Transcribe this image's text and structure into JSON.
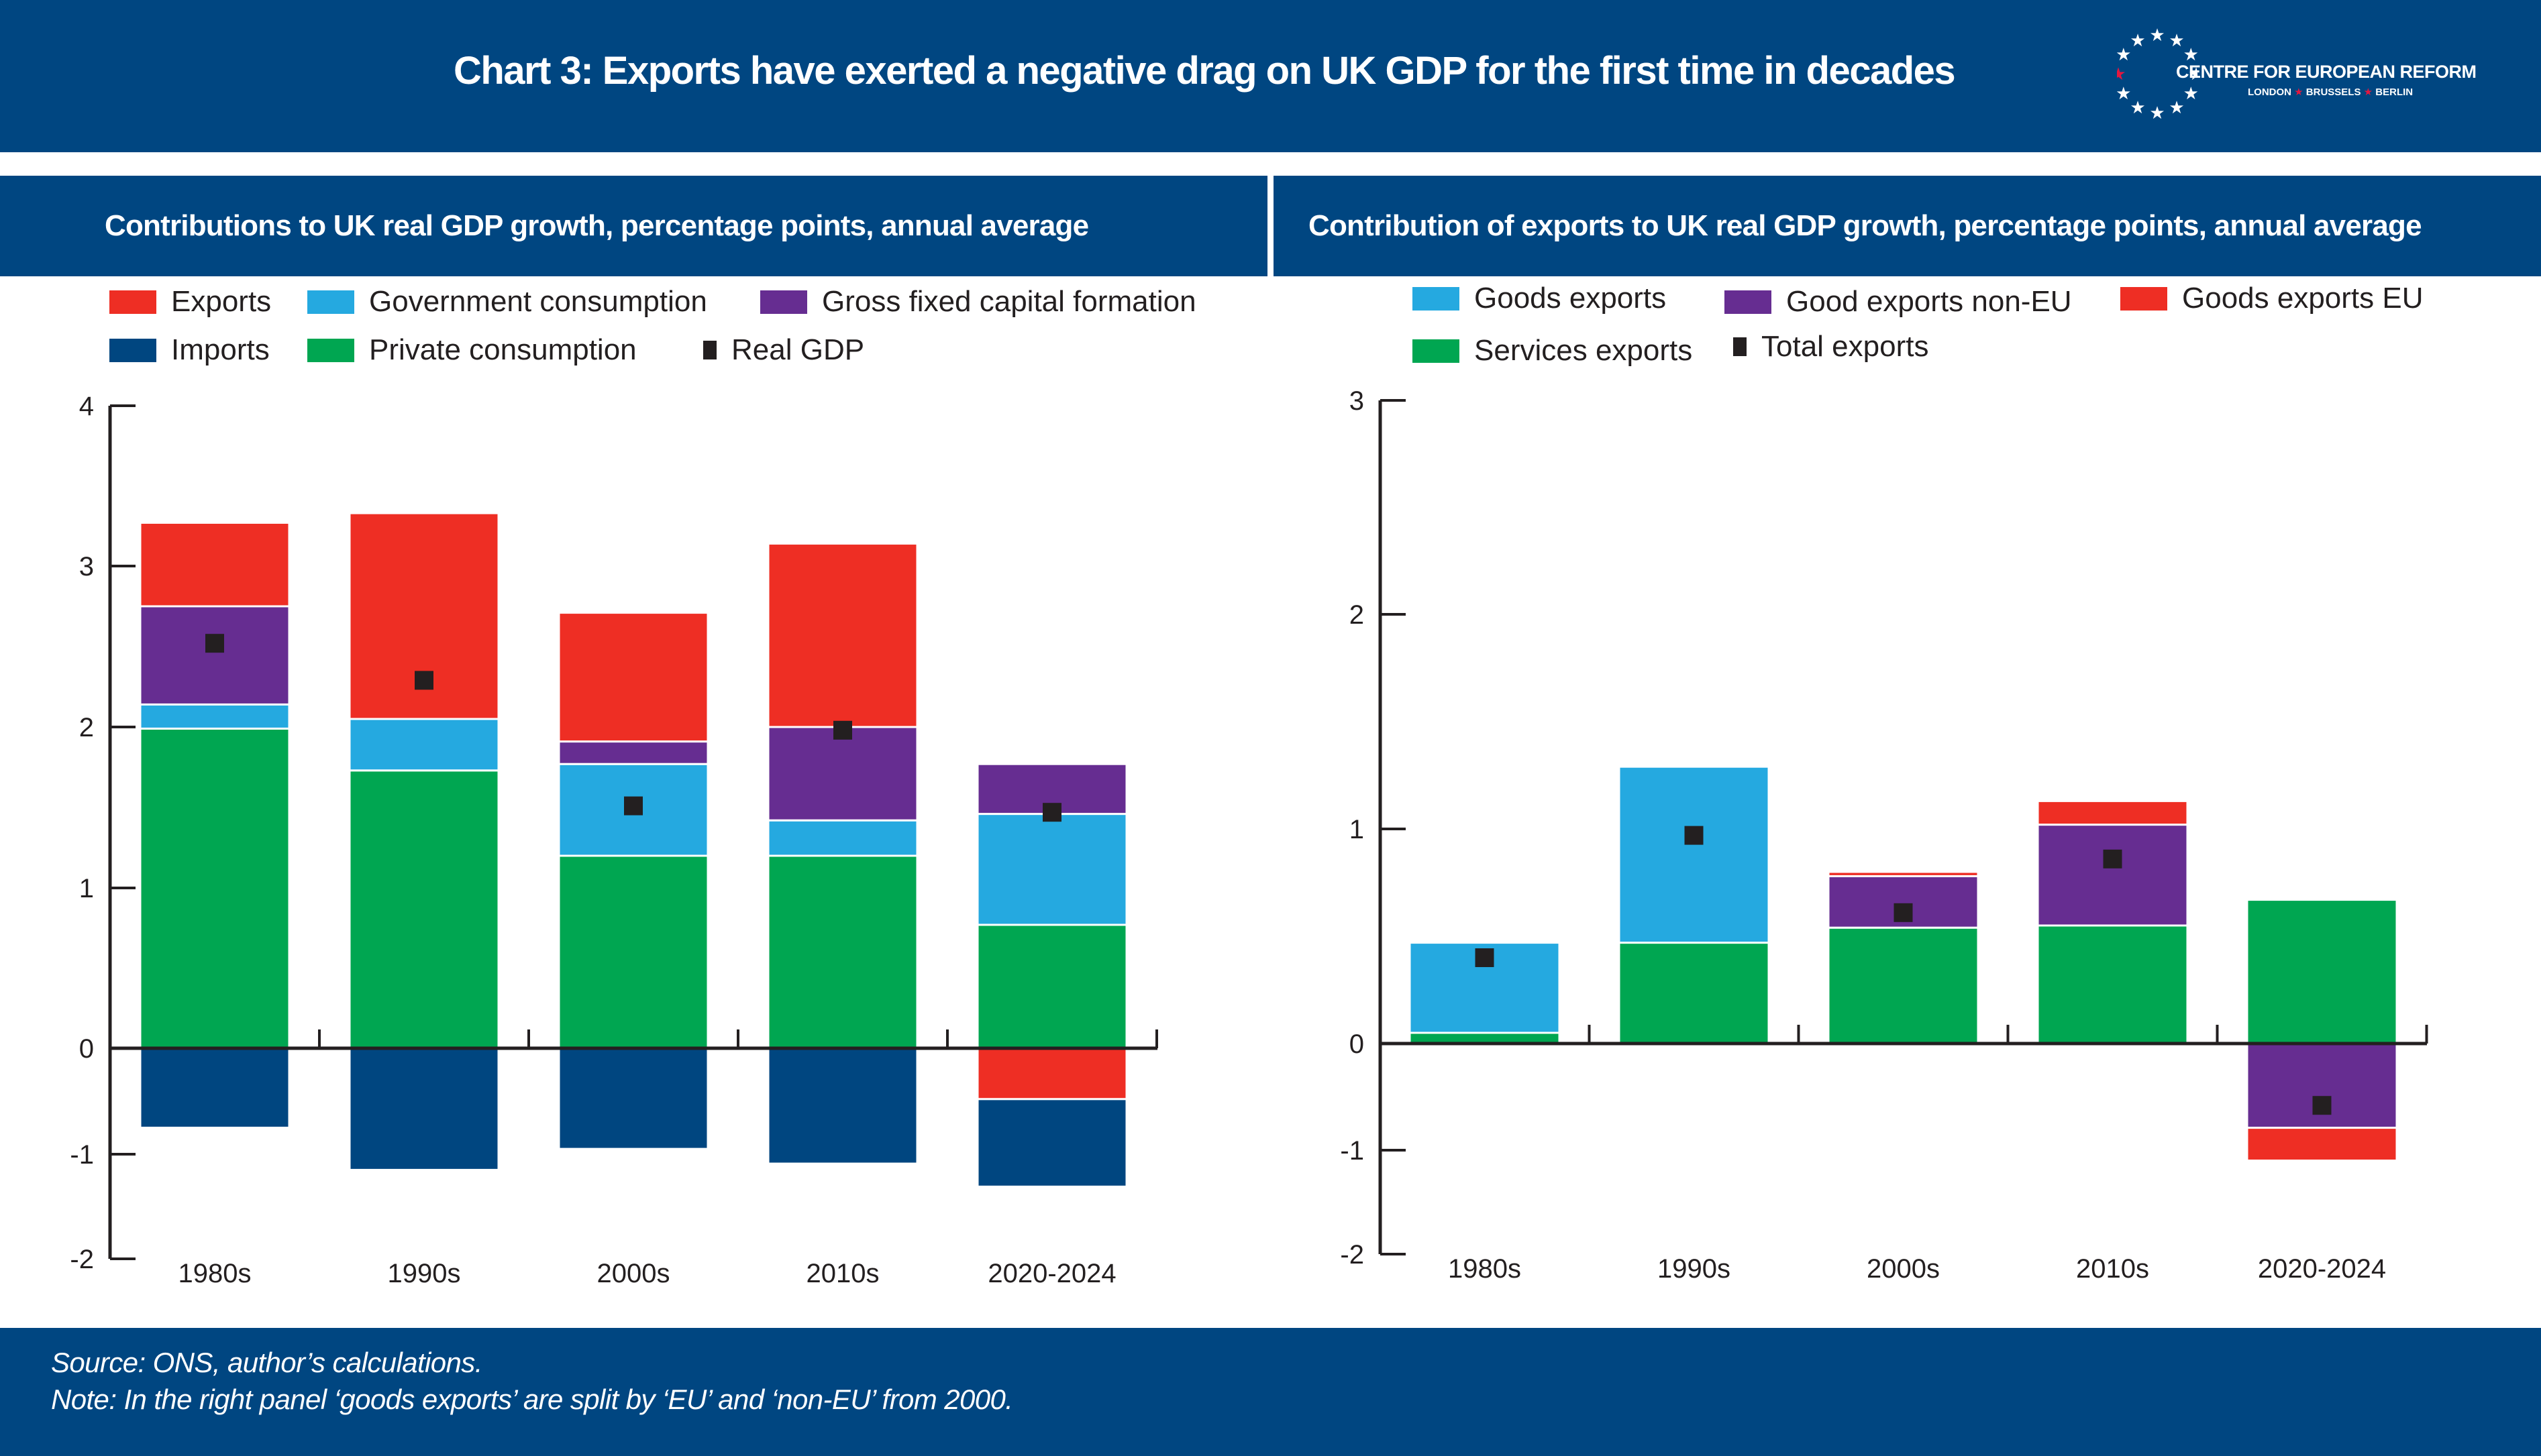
{
  "header": {
    "title": "Chart 3: Exports have exerted a negative drag on UK GDP for the first time in decades",
    "logo": {
      "name": "CENTRE FOR EUROPEAN REFORM",
      "cities": [
        "LONDON",
        "BRUSSELS",
        "BERLIN"
      ],
      "icon": "eu-stars-circle-icon"
    }
  },
  "colors": {
    "navy": "#004681",
    "red": "#ee2e24",
    "light_blue": "#25a9e0",
    "purple": "#662d91",
    "green": "#00a651",
    "imports_navy": "#004680",
    "marker": "#231f20"
  },
  "footer": {
    "source": "Source: ONS, author’s calculations.",
    "note": "Note: In the right panel ‘goods exports’ are split by ‘EU’ and ‘non-EU’ from 2000."
  },
  "chart_data": [
    {
      "type": "bar",
      "stacked": true,
      "title": "Contributions to UK real GDP growth, percentage points, annual average",
      "xlabel": "",
      "ylabel": "",
      "ylim": [
        -2,
        4
      ],
      "yticks": [
        -2,
        -1,
        0,
        1,
        2,
        3,
        4
      ],
      "grid": false,
      "legend_position": "top",
      "categories": [
        "1980s",
        "1990s",
        "2000s",
        "2010s",
        "2020-2024"
      ],
      "legend": [
        {
          "name": "Exports",
          "color": "#ee2e24",
          "kind": "bar"
        },
        {
          "name": "Government consumption",
          "color": "#25a9e0",
          "kind": "bar"
        },
        {
          "name": "Gross fixed capital formation",
          "color": "#662d91",
          "kind": "bar"
        },
        {
          "name": "Imports",
          "color": "#004680",
          "kind": "bar"
        },
        {
          "name": "Private consumption",
          "color": "#00a651",
          "kind": "bar"
        },
        {
          "name": "Real GDP",
          "color": "#231f20",
          "kind": "marker"
        }
      ],
      "series": [
        {
          "name": "Private consumption",
          "color": "#00a651",
          "values": [
            1.99,
            1.73,
            1.2,
            1.2,
            0.77
          ]
        },
        {
          "name": "Government consumption",
          "color": "#25a9e0",
          "values": [
            0.15,
            0.32,
            0.57,
            0.22,
            0.69
          ]
        },
        {
          "name": "Gross fixed capital formation",
          "color": "#662d91",
          "values": [
            0.61,
            0.0,
            0.14,
            0.58,
            0.31
          ]
        },
        {
          "name": "Exports",
          "color": "#ee2e24",
          "values": [
            0.52,
            1.28,
            0.8,
            1.14,
            -0.48
          ]
        },
        {
          "name": "Imports",
          "color": "#004680",
          "values": [
            -0.75,
            -1.15,
            -0.95,
            -1.09,
            -0.83
          ]
        }
      ],
      "markers": {
        "name": "Real GDP",
        "color": "#231f20",
        "values": [
          2.52,
          2.29,
          1.51,
          1.98,
          1.47
        ]
      }
    },
    {
      "type": "bar",
      "stacked": true,
      "title": "Contribution of exports to UK real GDP growth, percentage points, annual average",
      "xlabel": "",
      "ylabel": "",
      "ylim": [
        -2,
        3
      ],
      "yticks": [
        -2,
        -1,
        0,
        1,
        2,
        3
      ],
      "grid": false,
      "legend_position": "top",
      "categories": [
        "1980s",
        "1990s",
        "2000s",
        "2010s",
        "2020-2024"
      ],
      "legend": [
        {
          "name": "Goods exports",
          "color": "#25a9e0",
          "kind": "bar"
        },
        {
          "name": "Good exports non-EU",
          "color": "#662d91",
          "kind": "bar"
        },
        {
          "name": "Goods exports EU",
          "color": "#ee2e24",
          "kind": "bar"
        },
        {
          "name": "Services exports",
          "color": "#00a651",
          "kind": "bar"
        },
        {
          "name": "Total exports",
          "color": "#231f20",
          "kind": "marker"
        }
      ],
      "series": [
        {
          "name": "Services exports",
          "color": "#00a651",
          "values": [
            0.05,
            0.47,
            0.54,
            0.55,
            0.67
          ]
        },
        {
          "name": "Goods exports",
          "color": "#25a9e0",
          "values": [
            0.42,
            0.82,
            0.0,
            0.0,
            0.0
          ]
        },
        {
          "name": "Good exports non-EU",
          "color": "#662d91",
          "values": [
            0.0,
            0.0,
            0.24,
            0.47,
            -0.79
          ]
        },
        {
          "name": "Goods exports EU",
          "color": "#ee2e24",
          "values": [
            0.0,
            0.0,
            0.02,
            0.11,
            -0.31
          ]
        }
      ],
      "markers": {
        "name": "Total exports",
        "color": "#231f20",
        "values": [
          0.4,
          0.97,
          0.61,
          0.86,
          -0.58
        ]
      }
    }
  ]
}
